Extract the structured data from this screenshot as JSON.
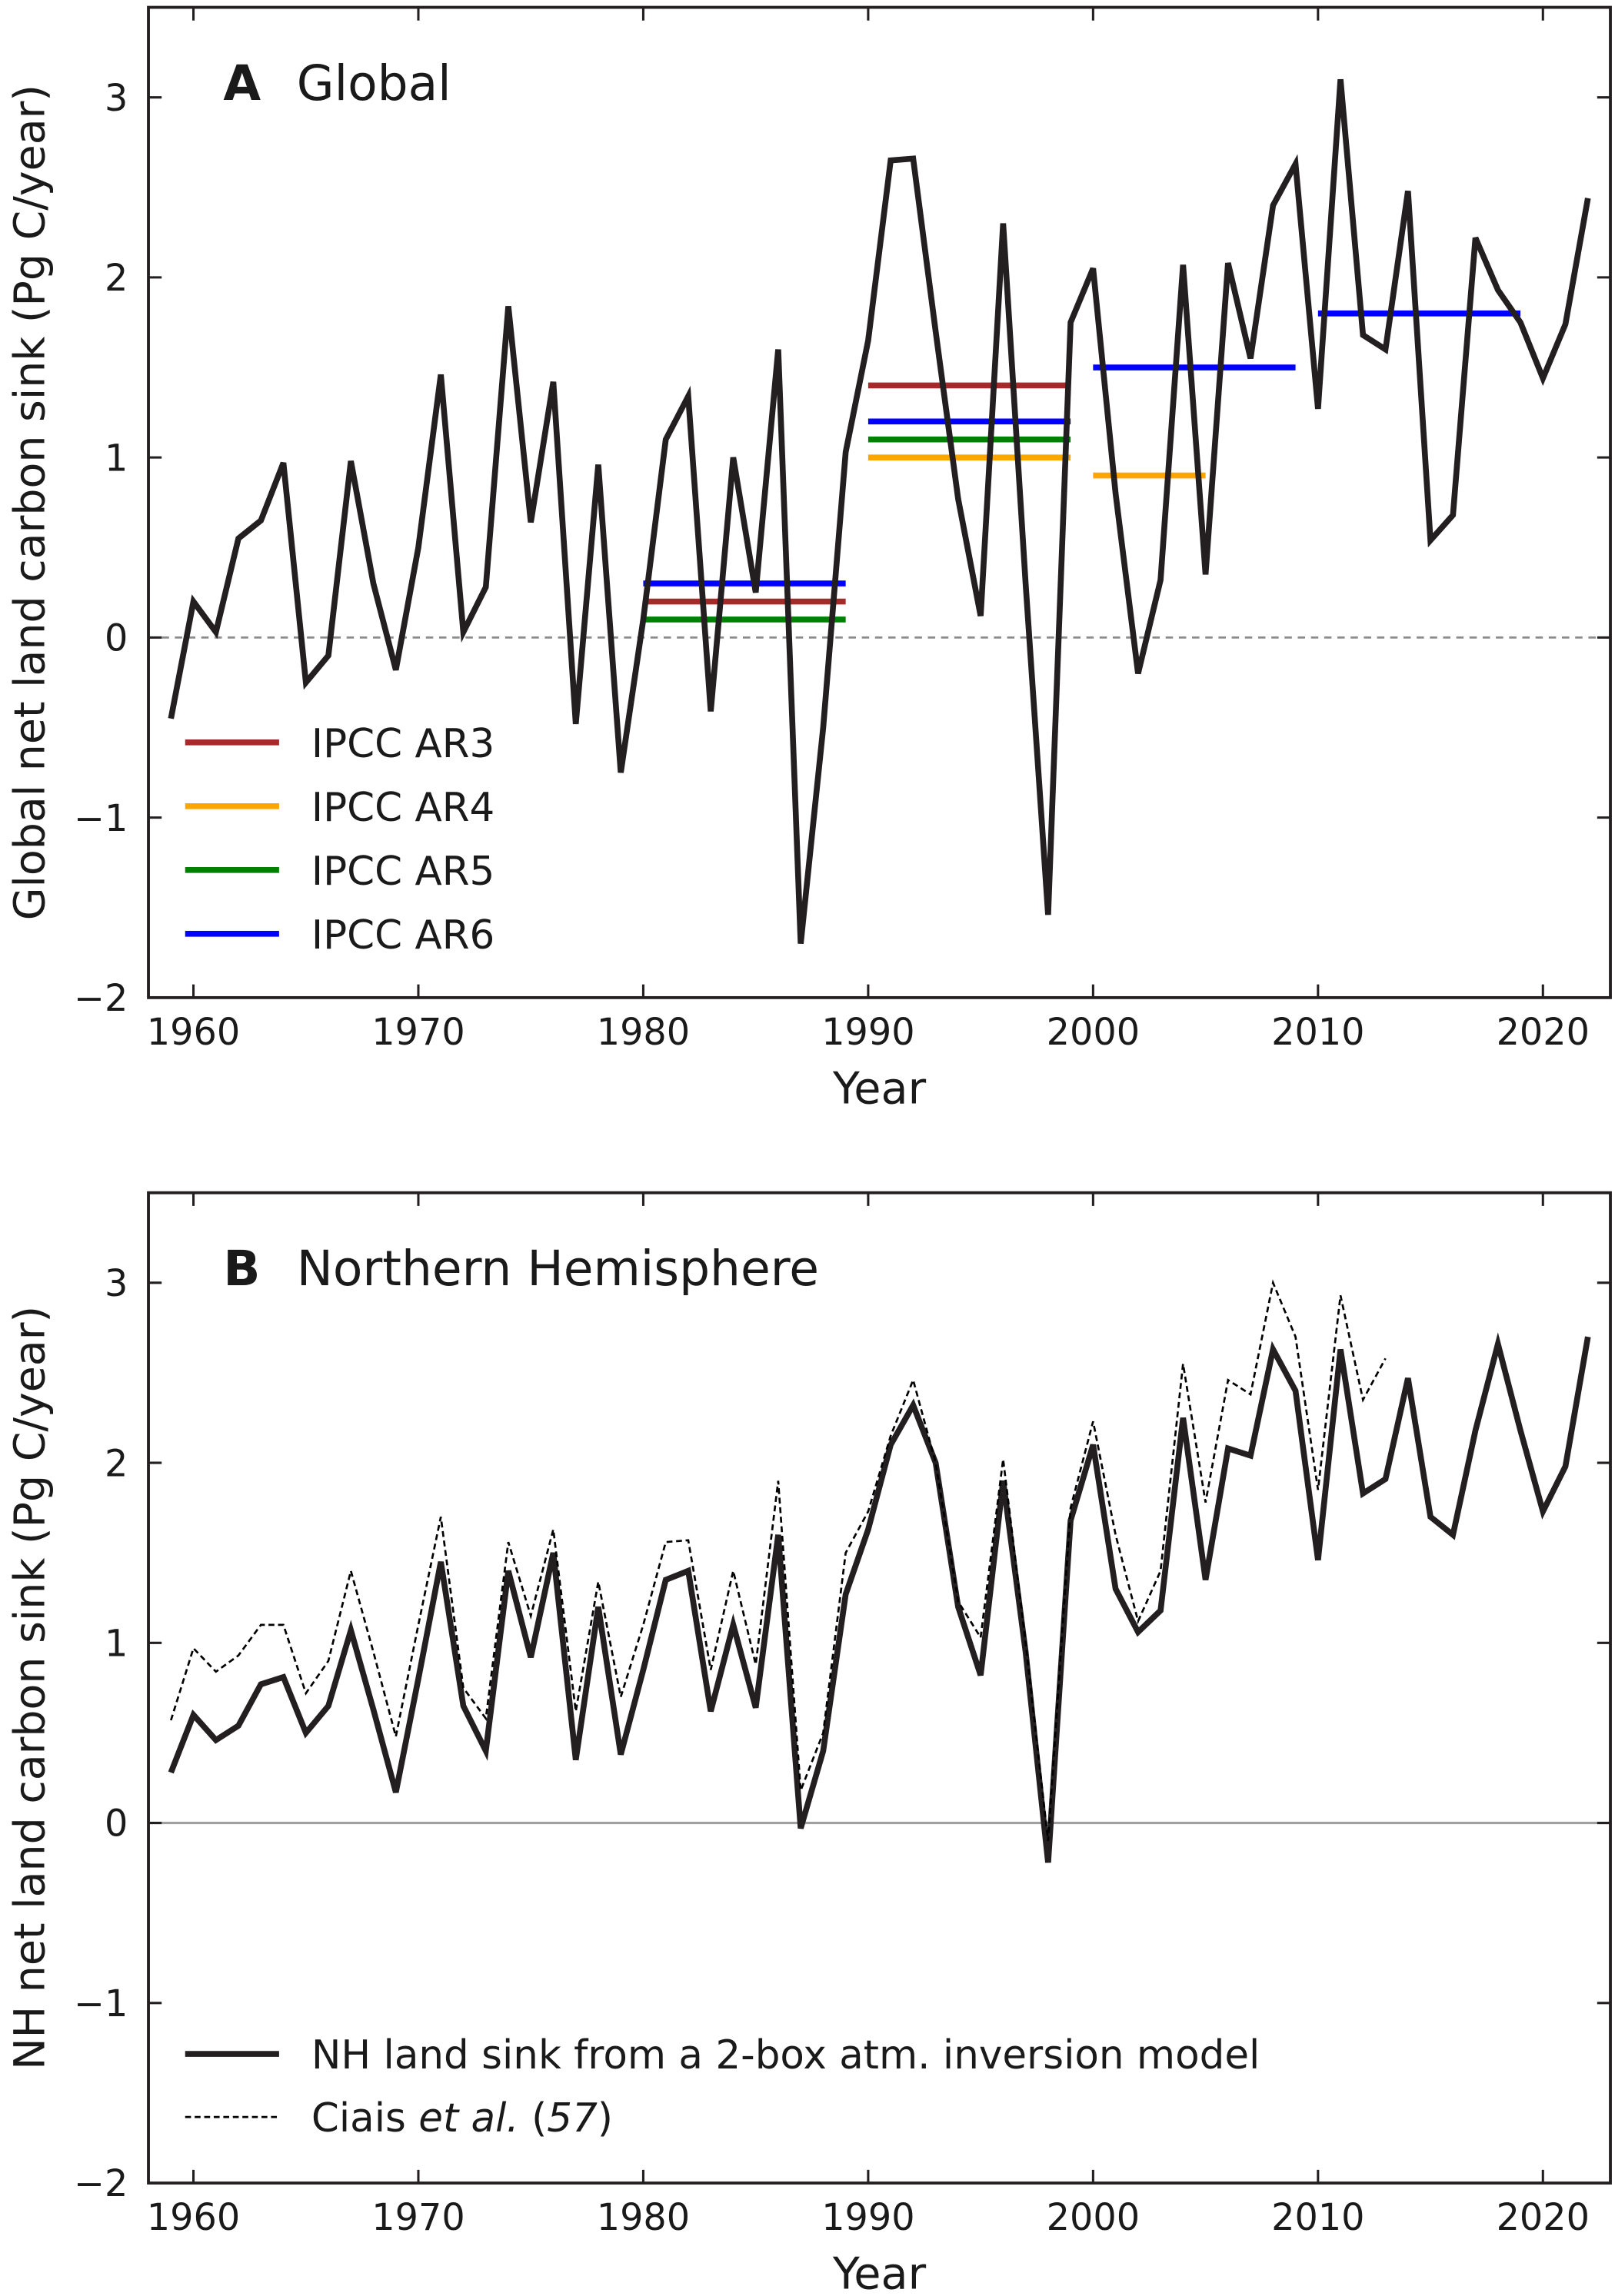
{
  "chart_data": [
    {
      "type": "line",
      "panel_letter": "A",
      "title": "Global",
      "xlabel": "Year",
      "ylabel": "Global net land carbon sink (Pg C/year)",
      "xlim": [
        1958,
        2023
      ],
      "ylim": [
        -2,
        3.5
      ],
      "xticks": [
        1960,
        1970,
        1980,
        1990,
        2000,
        2010,
        2020
      ],
      "yticks": [
        -2,
        -1,
        0,
        1,
        2,
        3
      ],
      "ytick_labels": [
        "−2",
        "−1",
        "0",
        "1",
        "2",
        "3"
      ],
      "zero_line": "dashed",
      "legend_placement": "lower-left",
      "x": [
        1959,
        1960,
        1961,
        1962,
        1963,
        1964,
        1965,
        1966,
        1967,
        1968,
        1969,
        1970,
        1971,
        1972,
        1973,
        1974,
        1975,
        1976,
        1977,
        1978,
        1979,
        1980,
        1981,
        1982,
        1983,
        1984,
        1985,
        1986,
        1987,
        1988,
        1989,
        1990,
        1991,
        1992,
        1993,
        1994,
        1995,
        1996,
        1997,
        1998,
        1999,
        2000,
        2001,
        2002,
        2003,
        2004,
        2005,
        2006,
        2007,
        2008,
        2009,
        2010,
        2011,
        2012,
        2013,
        2014,
        2015,
        2016,
        2017,
        2018,
        2019,
        2020,
        2021,
        2022
      ],
      "values": [
        -0.45,
        0.2,
        0.03,
        0.55,
        0.65,
        0.97,
        -0.25,
        -0.1,
        0.98,
        0.3,
        -0.18,
        0.5,
        1.46,
        0.03,
        0.28,
        1.84,
        0.64,
        1.42,
        -0.48,
        0.96,
        -0.75,
        0.1,
        1.1,
        1.34,
        -0.41,
        1.0,
        0.25,
        1.6,
        -1.7,
        -0.5,
        1.03,
        1.65,
        2.65,
        2.66,
        1.7,
        0.77,
        0.12,
        2.3,
        0.3,
        -1.54,
        1.75,
        2.05,
        0.8,
        -0.2,
        0.32,
        2.07,
        0.35,
        2.08,
        1.55,
        2.4,
        2.63,
        1.27,
        3.1,
        1.68,
        1.6,
        2.48,
        0.54,
        0.68,
        2.22,
        1.93,
        1.75,
        1.44,
        1.74,
        2.44
      ],
      "line_color": "#231f20",
      "estimates": [
        {
          "name": "IPCC AR3",
          "color": "#a52a2a",
          "segments": [
            {
              "start": 1980,
              "end": 1989,
              "value": 0.2
            },
            {
              "start": 1990,
              "end": 1999,
              "value": 1.4
            }
          ]
        },
        {
          "name": "IPCC AR4",
          "color": "#ffa500",
          "segments": [
            {
              "start": 1990,
              "end": 1999,
              "value": 1.0
            },
            {
              "start": 2000,
              "end": 2005,
              "value": 0.9
            }
          ]
        },
        {
          "name": "IPCC AR5",
          "color": "#008000",
          "segments": [
            {
              "start": 1980,
              "end": 1989,
              "value": 0.1
            },
            {
              "start": 1990,
              "end": 1999,
              "value": 1.1
            }
          ]
        },
        {
          "name": "IPCC AR6",
          "color": "#0000ff",
          "segments": [
            {
              "start": 1980,
              "end": 1989,
              "value": 0.3
            },
            {
              "start": 1990,
              "end": 1999,
              "value": 1.2
            },
            {
              "start": 2000,
              "end": 2009,
              "value": 1.5
            },
            {
              "start": 2010,
              "end": 2019,
              "value": 1.8
            }
          ]
        }
      ]
    },
    {
      "type": "line",
      "panel_letter": "B",
      "title": "Northern Hemisphere",
      "xlabel": "Year",
      "ylabel": "NH net land carbon sink (Pg C/year)",
      "xlim": [
        1958,
        2023
      ],
      "ylim": [
        -2,
        3.5
      ],
      "xticks": [
        1960,
        1970,
        1980,
        1990,
        2000,
        2010,
        2020
      ],
      "yticks": [
        -2,
        -1,
        0,
        1,
        2,
        3
      ],
      "ytick_labels": [
        "−2",
        "−1",
        "0",
        "1",
        "2",
        "3"
      ],
      "zero_line": "solid-gray",
      "legend_placement": "lower-left",
      "series": [
        {
          "name": "NH land sink from a 2-box atm. inversion model",
          "style": "solid",
          "color": "#231f20",
          "x": [
            1959,
            1960,
            1961,
            1962,
            1963,
            1964,
            1965,
            1966,
            1967,
            1968,
            1969,
            1970,
            1971,
            1972,
            1973,
            1974,
            1975,
            1976,
            1977,
            1978,
            1979,
            1980,
            1981,
            1982,
            1983,
            1984,
            1985,
            1986,
            1987,
            1988,
            1989,
            1990,
            1991,
            1992,
            1993,
            1994,
            1995,
            1996,
            1997,
            1998,
            1999,
            2000,
            2001,
            2002,
            2003,
            2004,
            2005,
            2006,
            2007,
            2008,
            2009,
            2010,
            2011,
            2012,
            2013,
            2014,
            2015,
            2016,
            2017,
            2018,
            2019,
            2020,
            2021,
            2022
          ],
          "values": [
            0.28,
            0.6,
            0.46,
            0.54,
            0.77,
            0.81,
            0.5,
            0.65,
            1.07,
            0.63,
            0.17,
            0.8,
            1.45,
            0.65,
            0.4,
            1.4,
            0.92,
            1.5,
            0.35,
            1.2,
            0.38,
            0.85,
            1.35,
            1.4,
            0.62,
            1.1,
            0.64,
            1.6,
            -0.03,
            0.4,
            1.27,
            1.63,
            2.1,
            2.32,
            2.0,
            1.2,
            0.82,
            1.9,
            0.95,
            -0.22,
            1.68,
            2.1,
            1.3,
            1.06,
            1.18,
            2.25,
            1.35,
            2.08,
            2.04,
            2.63,
            2.4,
            1.46,
            2.63,
            1.83,
            1.91,
            2.47,
            1.7,
            1.6,
            2.18,
            2.66,
            2.18,
            1.73,
            1.98,
            2.7
          ]
        },
        {
          "name": "Ciais et al. (57)",
          "name_parts": [
            "Ciais ",
            "et al.",
            " (",
            "57",
            ")"
          ],
          "style": "dashed",
          "color": "#000000",
          "x": [
            1959,
            1960,
            1961,
            1962,
            1963,
            1964,
            1965,
            1966,
            1967,
            1968,
            1969,
            1970,
            1971,
            1972,
            1973,
            1974,
            1975,
            1976,
            1977,
            1978,
            1979,
            1980,
            1981,
            1982,
            1983,
            1984,
            1985,
            1986,
            1987,
            1988,
            1989,
            1990,
            1991,
            1992,
            1993,
            1994,
            1995,
            1996,
            1997,
            1998,
            1999,
            2000,
            2001,
            2002,
            2003,
            2004,
            2005,
            2006,
            2007,
            2008,
            2009,
            2010,
            2011,
            2012,
            2013
          ],
          "values": [
            0.57,
            0.97,
            0.84,
            0.93,
            1.1,
            1.1,
            0.72,
            0.9,
            1.4,
            0.95,
            0.48,
            1.1,
            1.7,
            0.75,
            0.58,
            1.56,
            1.15,
            1.63,
            0.62,
            1.34,
            0.7,
            1.1,
            1.56,
            1.57,
            0.85,
            1.4,
            0.88,
            1.9,
            0.18,
            0.5,
            1.5,
            1.73,
            2.15,
            2.46,
            2.0,
            1.23,
            1.03,
            2.02,
            1.0,
            -0.1,
            1.75,
            2.23,
            1.6,
            1.12,
            1.4,
            2.55,
            1.78,
            2.46,
            2.38,
            3.0,
            2.7,
            1.85,
            2.93,
            2.35,
            2.58
          ]
        }
      ]
    }
  ]
}
